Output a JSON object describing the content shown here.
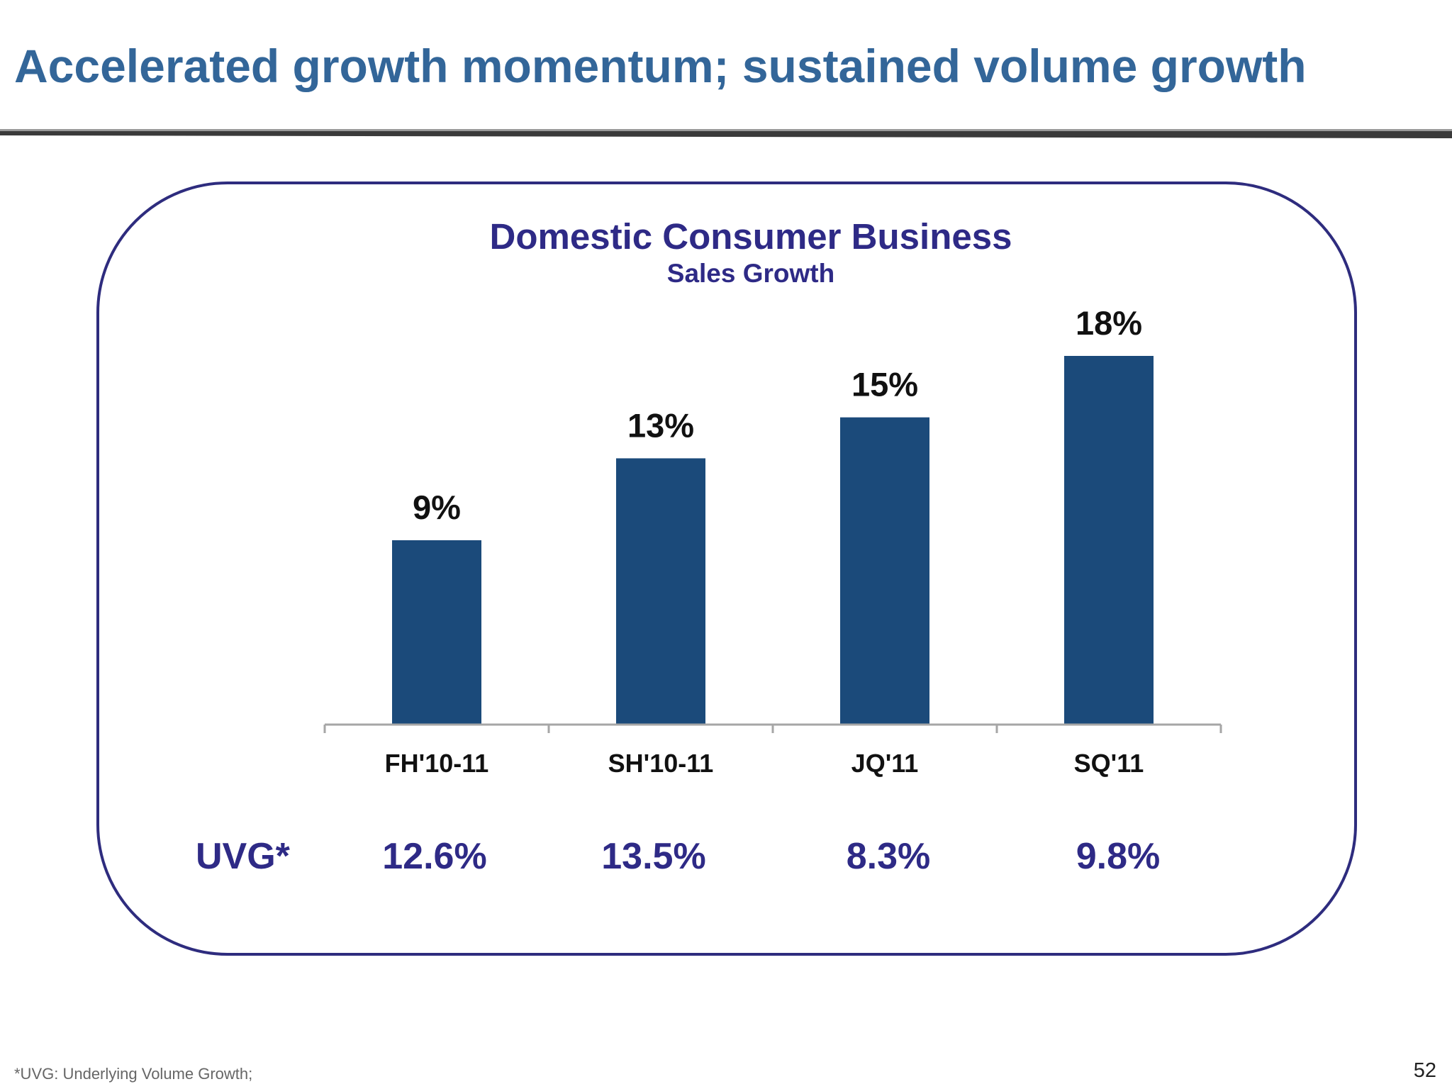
{
  "slide": {
    "title": "Accelerated growth momentum; sustained volume growth",
    "footnote": "*UVG: Underlying Volume Growth;",
    "page_number": "52"
  },
  "colors": {
    "title": "#336699",
    "panel_border": "#2e2c7e",
    "bar": "#1b4a7a",
    "chart_text": "#2e2a86"
  },
  "chart_data": {
    "type": "bar",
    "title": "Domestic Consumer Business",
    "subtitle": "Sales Growth",
    "categories": [
      "FH'10-11",
      "SH'10-11",
      "JQ'11",
      "SQ'11"
    ],
    "values": [
      9,
      13,
      15,
      18
    ],
    "data_labels": [
      "9%",
      "13%",
      "15%",
      "18%"
    ],
    "ylim": [
      0,
      18
    ],
    "grid": false,
    "xlabel": "",
    "ylabel": ""
  },
  "uvg": {
    "label": "UVG*",
    "values": [
      "12.6%",
      "13.5%",
      "8.3%",
      "9.8%"
    ]
  }
}
